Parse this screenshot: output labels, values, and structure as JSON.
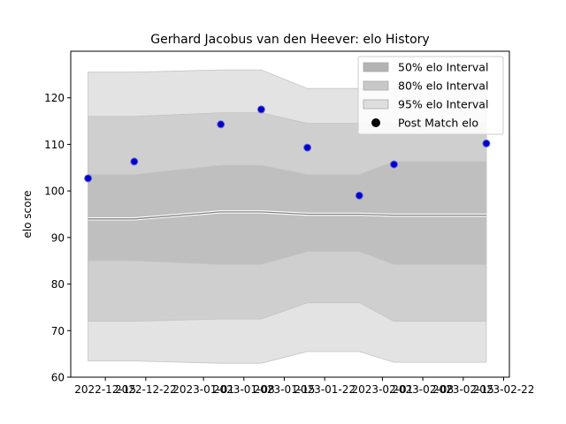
{
  "chart_data": {
    "type": "area",
    "title": "Gerhard Jacobus van den Heever: elo History",
    "xlabel": "",
    "ylabel": "elo score",
    "ylim": [
      60,
      130
    ],
    "yticks": [
      60,
      70,
      80,
      90,
      100,
      110,
      120
    ],
    "xlim": [
      "2022-12-09",
      "2023-02-23"
    ],
    "xticks": [
      "2022-12-15",
      "2022-12-22",
      "2023-01-01",
      "2023-01-08",
      "2023-01-15",
      "2023-01-22",
      "2023-02-01",
      "2023-02-08",
      "2023-02-15",
      "2023-02-22"
    ],
    "x": [
      "2022-12-12",
      "2022-12-20",
      "2023-01-04",
      "2023-01-11",
      "2023-01-19",
      "2023-01-28",
      "2023-02-03",
      "2023-02-19"
    ],
    "mean": [
      94.0,
      94.0,
      95.5,
      95.5,
      95.0,
      95.0,
      94.8,
      94.8
    ],
    "bands": [
      {
        "name": "95% elo Interval",
        "lower": [
          63.5,
          63.5,
          63.0,
          63.0,
          65.5,
          65.5,
          63.2,
          63.2
        ],
        "upper": [
          125.5,
          125.5,
          126.0,
          126.0,
          122.0,
          122.0,
          122.0,
          122.0
        ],
        "color": "#e3e3e3"
      },
      {
        "name": "80% elo Interval",
        "lower": [
          72.0,
          72.0,
          72.5,
          72.5,
          76.0,
          76.0,
          72.0,
          72.0
        ],
        "upper": [
          116.0,
          116.0,
          116.8,
          116.8,
          114.5,
          114.5,
          114.5,
          114.5
        ],
        "color": "#cfcfcf"
      },
      {
        "name": "50% elo Interval",
        "lower": [
          85.0,
          85.0,
          84.2,
          84.2,
          87.0,
          87.0,
          84.2,
          84.2
        ],
        "upper": [
          103.5,
          103.5,
          105.5,
          105.5,
          103.5,
          103.5,
          106.3,
          106.3
        ],
        "color": "#bfbfbf"
      }
    ],
    "points": {
      "name": "Post Match elo",
      "x": [
        "2022-12-12",
        "2022-12-20",
        "2023-01-04",
        "2023-01-11",
        "2023-01-19",
        "2023-01-28",
        "2023-02-03",
        "2023-02-19"
      ],
      "y": [
        102.7,
        106.3,
        114.3,
        117.5,
        109.3,
        99.0,
        105.7,
        110.2
      ],
      "color": "#0000cc"
    },
    "legend": {
      "placement": "top-right",
      "entries": [
        "50% elo Interval",
        "80% elo Interval",
        "95% elo Interval",
        "Post Match elo"
      ]
    }
  }
}
